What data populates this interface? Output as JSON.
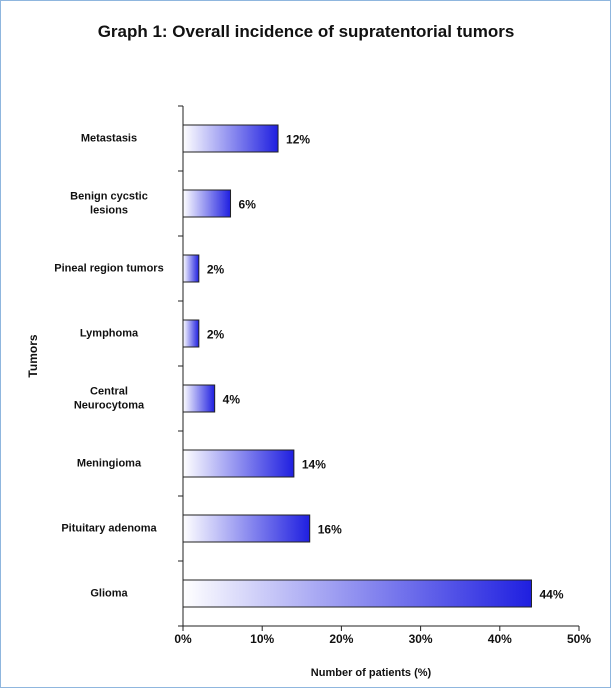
{
  "chart_data": {
    "type": "barh",
    "title": "Graph 1: Overall incidence of supratentorial tumors",
    "x_label": "Number of patients (%)",
    "y_label": "Tumors",
    "categories": [
      "Metastasis",
      "Benign cycstic\nlesions",
      "Pineal region tumors",
      "Lymphoma",
      "Central\nNeurocytoma",
      "Meningioma",
      "Pituitary adenoma",
      "Glioma"
    ],
    "values": [
      12,
      6,
      2,
      2,
      4,
      14,
      16,
      44
    ],
    "value_labels": [
      "12%",
      "6%",
      "2%",
      "2%",
      "4%",
      "14%",
      "16%",
      "44%"
    ],
    "color": "#1f1fe0",
    "xlim": [
      0,
      50
    ],
    "xticks": [
      {
        "value": 0,
        "label": "0%"
      },
      {
        "value": 10,
        "label": "10%"
      },
      {
        "value": 20,
        "label": "20%"
      },
      {
        "value": 30,
        "label": "30%"
      },
      {
        "value": 40,
        "label": "40%"
      },
      {
        "value": 50,
        "label": "50%"
      }
    ]
  }
}
